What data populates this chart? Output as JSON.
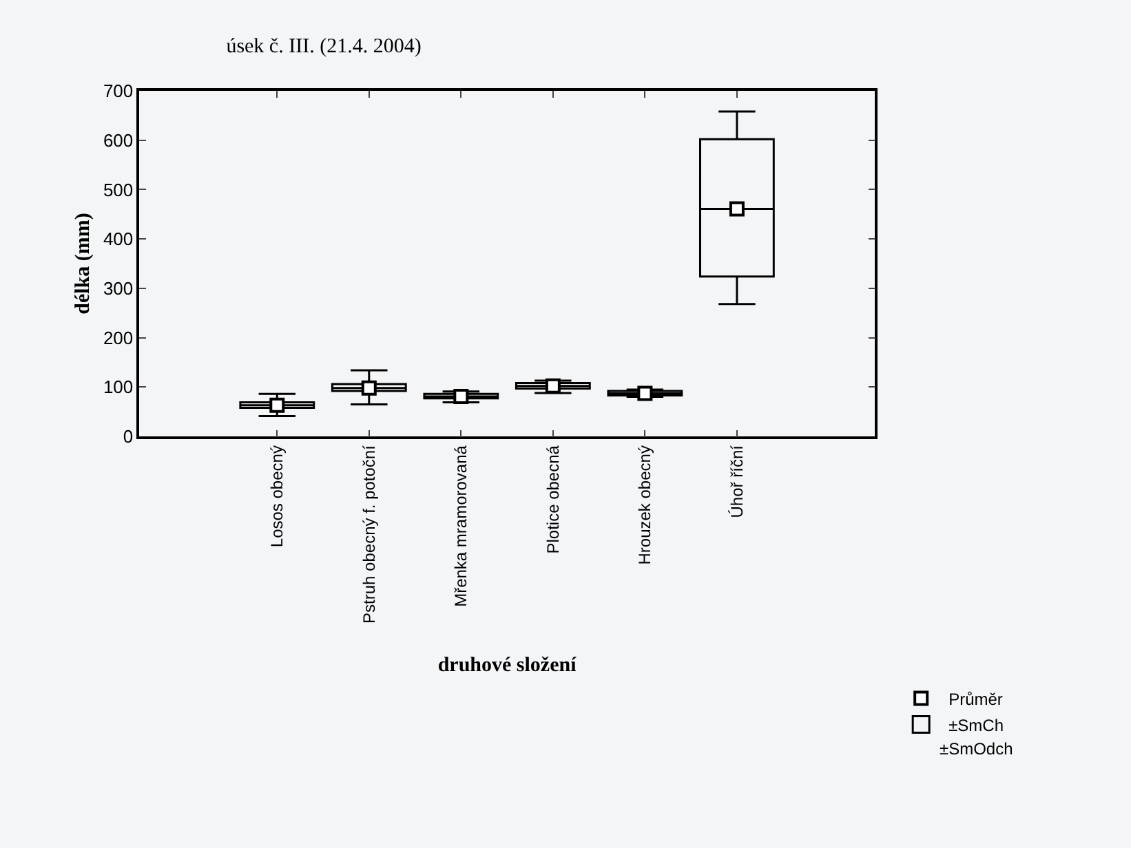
{
  "chart_data": {
    "type": "box",
    "title": "úsek č. III. (21.4. 2004)",
    "xlabel": "druhové složení",
    "ylabel": "délka (mm)",
    "categories": [
      null,
      "Losos obecný",
      "Pstruh obecný f. potoční",
      "Mřenka mramorovaná",
      "Plotice obecná",
      "Hrouzek obecný",
      "Úhoř říční",
      null
    ],
    "series": [
      {
        "name": "Průměr",
        "type": "scatter",
        "marker": "square",
        "color": "#000000",
        "values": [
          null,
          63,
          98,
          81,
          102,
          87,
          461,
          null
        ]
      },
      {
        "name": "±SmCh",
        "type": "box",
        "color": "#000000",
        "boxes": [
          null,
          {
            "low": 41,
            "q1": 58,
            "median": 63,
            "q3": 69,
            "high": 86
          },
          {
            "low": 65,
            "q1": 92,
            "median": 98,
            "q3": 106,
            "high": 134
          },
          {
            "low": 69,
            "q1": 77,
            "median": 81,
            "q3": 86,
            "high": 91
          },
          {
            "low": 88,
            "q1": 97,
            "median": 102,
            "q3": 108,
            "high": 113
          },
          {
            "low": 80,
            "q1": 83,
            "median": 87,
            "q3": 92,
            "high": 95
          },
          {
            "low": 268,
            "q1": 324,
            "median": 461,
            "q3": 602,
            "high": 658
          },
          null
        ]
      }
    ],
    "annotations": [
      "±SmOdch"
    ],
    "ylim": [
      0,
      700
    ],
    "yticks": [
      0,
      100,
      200,
      300,
      400,
      500,
      600,
      700
    ],
    "grid": false,
    "legend": "bottom right"
  }
}
